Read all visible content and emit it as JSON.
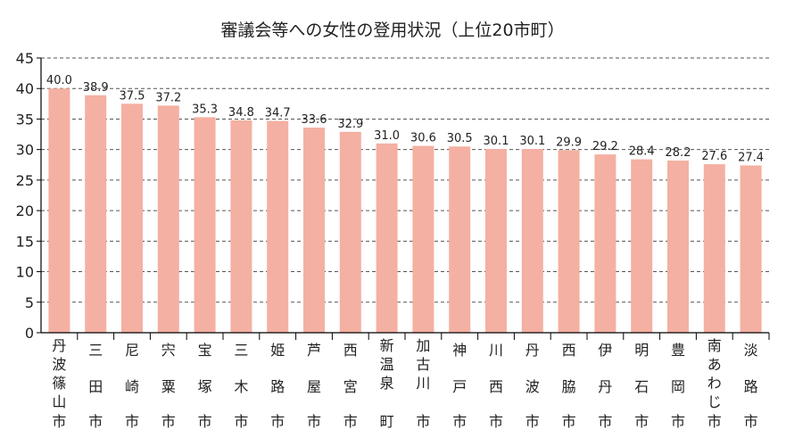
{
  "chart_data": {
    "type": "bar",
    "title": "審議会等への女性の登用状況（上位20市町）",
    "categories": [
      "丹波篠山市",
      "三田市",
      "尼崎市",
      "宍粟市",
      "宝塚市",
      "三木市",
      "姫路市",
      "芦屋市",
      "西宮市",
      "新温泉町",
      "加古川市",
      "神戸市",
      "川西市",
      "丹波市",
      "西脇市",
      "伊丹市",
      "明石市",
      "豊岡市",
      "南あわじ市",
      "淡路市"
    ],
    "values": [
      40.0,
      38.9,
      37.5,
      37.2,
      35.3,
      34.8,
      34.7,
      33.6,
      32.9,
      31.0,
      30.6,
      30.5,
      30.1,
      30.1,
      29.9,
      29.2,
      28.4,
      28.2,
      27.6,
      27.4
    ],
    "value_labels": [
      "40.0",
      "38.9",
      "37.5",
      "37.2",
      "35.3",
      "34.8",
      "34.7",
      "33.6",
      "32.9",
      "31.0",
      "30.6",
      "30.5",
      "30.1",
      "30.1",
      "29.9",
      "29.2",
      "28.4",
      "28.2",
      "27.6",
      "27.4"
    ],
    "ylim": [
      0,
      45
    ],
    "yticks": [
      "0",
      "5",
      "10",
      "15",
      "20",
      "25",
      "30",
      "35",
      "40",
      "45"
    ],
    "grid": "dashed horizontal",
    "bar_color": "#f4b0a2"
  }
}
